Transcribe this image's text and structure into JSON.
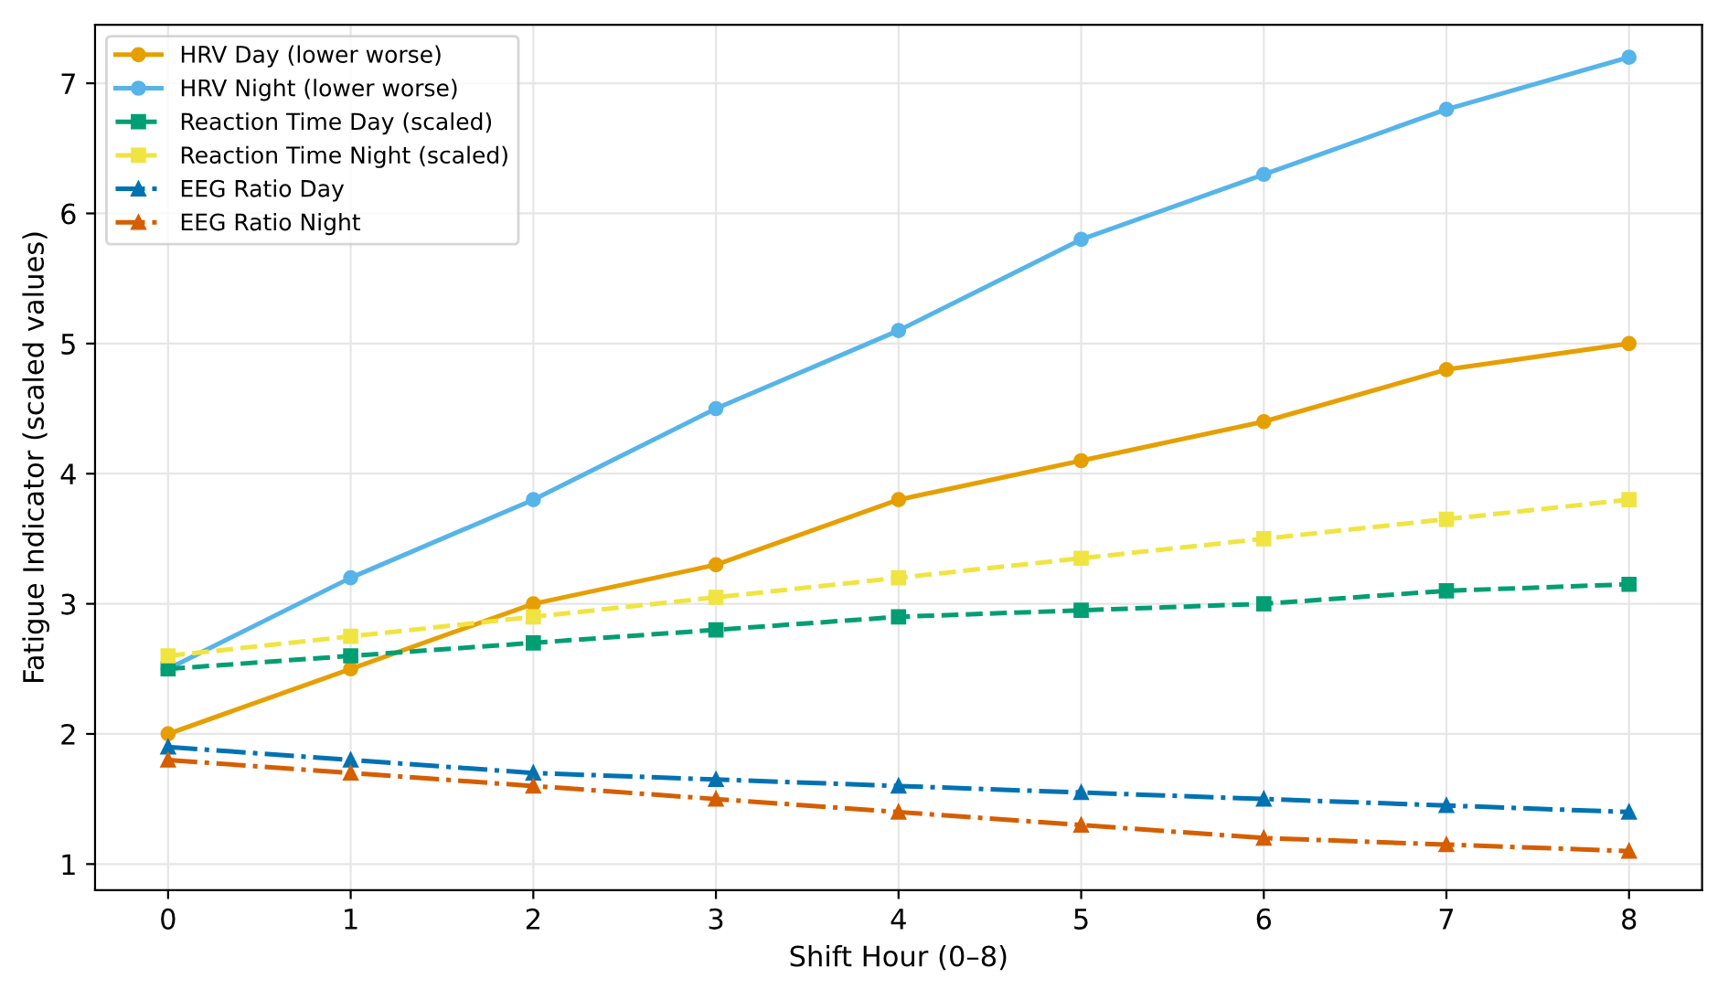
{
  "chart_data": {
    "type": "line",
    "xlabel": "Shift Hour (0–8)",
    "ylabel": "Fatigue Indicator (scaled values)",
    "x": [
      0,
      1,
      2,
      3,
      4,
      5,
      6,
      7,
      8
    ],
    "xlim": [
      -0.4,
      8.4
    ],
    "ylim": [
      0.8,
      7.45
    ],
    "xticks": [
      0,
      1,
      2,
      3,
      4,
      5,
      6,
      7,
      8
    ],
    "yticks": [
      1,
      2,
      3,
      4,
      5,
      6,
      7
    ],
    "grid": true,
    "legend": "top left",
    "series": [
      {
        "name": "HRV Day (lower worse)",
        "color": "#e69f00",
        "marker": "circle",
        "line_style": "solid",
        "values": [
          2.0,
          2.5,
          3.0,
          3.3,
          3.8,
          4.1,
          4.4,
          4.8,
          5.0
        ]
      },
      {
        "name": "HRV Night (lower worse)",
        "color": "#56b4e9",
        "marker": "circle",
        "line_style": "solid",
        "values": [
          2.5,
          3.2,
          3.8,
          4.5,
          5.1,
          5.8,
          6.3,
          6.8,
          7.2
        ]
      },
      {
        "name": "Reaction Time Day (scaled)",
        "color": "#009e73",
        "marker": "square",
        "line_style": "dashed",
        "values": [
          2.5,
          2.6,
          2.7,
          2.8,
          2.9,
          2.95,
          3.0,
          3.1,
          3.15
        ]
      },
      {
        "name": "Reaction Time Night (scaled)",
        "color": "#f0e442",
        "marker": "square",
        "line_style": "dashed",
        "values": [
          2.6,
          2.75,
          2.9,
          3.05,
          3.2,
          3.35,
          3.5,
          3.65,
          3.8
        ]
      },
      {
        "name": "EEG Ratio Day",
        "color": "#0072b2",
        "marker": "triangle",
        "line_style": "dashdot",
        "values": [
          1.9,
          1.8,
          1.7,
          1.65,
          1.6,
          1.55,
          1.5,
          1.45,
          1.4
        ]
      },
      {
        "name": "EEG Ratio Night",
        "color": "#d55e00",
        "marker": "triangle",
        "line_style": "dashdot",
        "values": [
          1.8,
          1.7,
          1.6,
          1.5,
          1.4,
          1.3,
          1.2,
          1.15,
          1.1
        ]
      }
    ]
  }
}
